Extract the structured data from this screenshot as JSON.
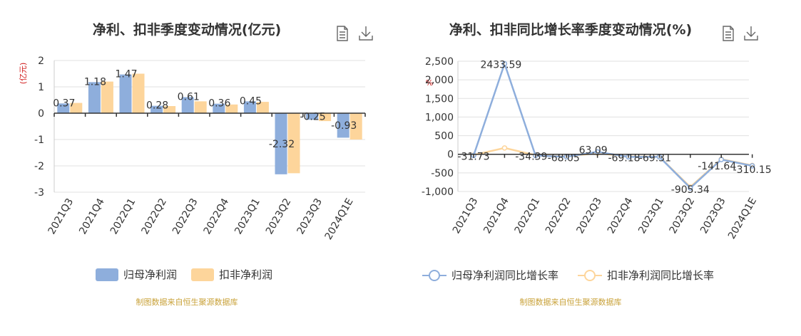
{
  "charts": [
    {
      "title": "净利、扣非季度变动情况(亿元)",
      "unit_label": "(亿元)",
      "source": "制图数据来自恒生聚源数据库",
      "icons": [
        "document-icon",
        "download-icon"
      ],
      "colors": {
        "s0": "#8eaedc",
        "s1": "#fdd59b"
      }
    },
    {
      "title": "净利、扣非同比增长率季度变动情况(%)",
      "unit_label": "%",
      "source": "制图数据来自恒生聚源数据库",
      "icons": [
        "document-icon",
        "download-icon"
      ],
      "colors": {
        "s0": "#8eaedc",
        "s1": "#fdd59b"
      }
    }
  ],
  "chart_data": [
    {
      "type": "bar",
      "title": "净利、扣非季度变动情况(亿元)",
      "ylabel": "(亿元)",
      "categories": [
        "2021Q3",
        "2021Q4",
        "2022Q1",
        "2022Q2",
        "2022Q3",
        "2022Q4",
        "2023Q1",
        "2023Q2",
        "2023Q3",
        "2024Q1E"
      ],
      "ylim": [
        -3,
        2
      ],
      "yticks": [
        2,
        1,
        0,
        -1,
        -2,
        -3
      ],
      "grid": true,
      "legend_position": "bottom",
      "series": [
        {
          "name": "归母净利润",
          "values": [
            0.37,
            1.18,
            1.47,
            0.28,
            0.61,
            0.36,
            0.45,
            -2.32,
            -0.25,
            -0.93
          ],
          "labels": [
            "0.37",
            "1.18",
            "1.47",
            "0.28",
            "0.61",
            "0.36",
            "0.45",
            "-2.32",
            "-0.25",
            "-0.93"
          ]
        },
        {
          "name": "扣非净利润",
          "values": [
            0.39,
            1.2,
            1.5,
            0.27,
            0.45,
            0.33,
            0.43,
            -2.28,
            -0.3,
            -1.0
          ]
        }
      ]
    },
    {
      "type": "line",
      "title": "净利、扣非同比增长率季度变动情况(%)",
      "ylabel": "%",
      "categories": [
        "2021Q3",
        "2021Q4",
        "2022Q1",
        "2022Q2",
        "2022Q3",
        "2022Q4",
        "2023Q1",
        "2023Q2",
        "2023Q3",
        "2024Q1E"
      ],
      "ylim": [
        -1000,
        2500
      ],
      "yticks": [
        2500,
        2000,
        1500,
        1000,
        500,
        0,
        -500,
        -1000
      ],
      "ytick_labels": [
        "2,500",
        "2,000",
        "1,500",
        "1,000",
        "500",
        "0",
        "-500",
        "-1,000"
      ],
      "grid": true,
      "legend_position": "bottom",
      "series": [
        {
          "name": "归母净利润同比增长率",
          "values": [
            -31.73,
            2433.59,
            -34.39,
            -68.05,
            63.09,
            -69.18,
            -69.31,
            -905.34,
            -141.64,
            -310.15
          ],
          "labels": [
            "-31.73",
            "2433.59",
            "-34.39",
            "-68.05",
            "63.09",
            "-69.18",
            "-69.31",
            "-905.34",
            "-141.64",
            "-310.15"
          ]
        },
        {
          "name": "扣非净利润同比增长率",
          "values": [
            -20,
            170,
            -25,
            -60,
            30,
            -60,
            -65,
            -880,
            -130,
            -300
          ]
        }
      ]
    }
  ]
}
